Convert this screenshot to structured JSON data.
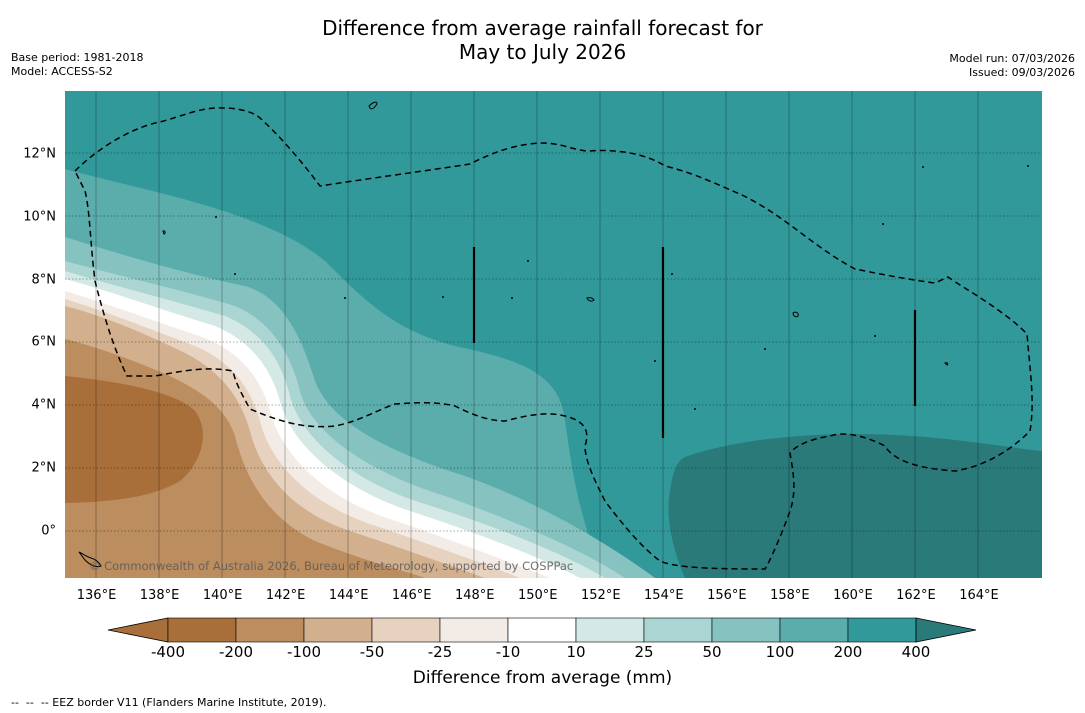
{
  "title": {
    "line1": "Difference from average rainfall forecast for",
    "line2": "May to July 2026"
  },
  "meta_left": {
    "base_period": "Base period: 1981-2018",
    "model": "Model: ACCESS-S2"
  },
  "meta_right": {
    "model_run": "Model run: 07/03/2026",
    "issued": "Issued: 09/03/2026"
  },
  "axes": {
    "lon_labels": [
      "136°E",
      "138°E",
      "140°E",
      "142°E",
      "144°E",
      "146°E",
      "148°E",
      "150°E",
      "152°E",
      "154°E",
      "156°E",
      "158°E",
      "160°E",
      "162°E",
      "164°E"
    ],
    "lon_values": [
      136,
      138,
      140,
      142,
      144,
      146,
      148,
      150,
      152,
      154,
      156,
      158,
      160,
      162,
      164
    ],
    "lat_labels": [
      "12°N",
      "10°N",
      "8°N",
      "6°N",
      "4°N",
      "2°N",
      "0°"
    ],
    "lat_values": [
      12,
      10,
      8,
      6,
      4,
      2,
      0
    ],
    "lon_range": [
      135,
      166
    ],
    "lat_range": [
      -1.5,
      14
    ]
  },
  "copyright": "© Commonwealth of Australia 2026, Bureau of Meteorology, supported by COSPPac",
  "colorbar": {
    "title": "Difference from average (mm)",
    "tick_labels": [
      "-400",
      "-200",
      "-100",
      "-50",
      "-25",
      "-10",
      "10",
      "25",
      "50",
      "100",
      "200",
      "400"
    ],
    "colors": [
      "#a86f3a",
      "#bc8d5f",
      "#d2b08e",
      "#e6d2bf",
      "#f3ece6",
      "#ffffff",
      "#d4e8e6",
      "#aad5d2",
      "#86c2c0",
      "#5aadab",
      "#32999a",
      "#2a7a7a"
    ]
  },
  "footnote": "--  --  -- EEZ border V11 (Flanders Marine Institute, 2019)."
}
